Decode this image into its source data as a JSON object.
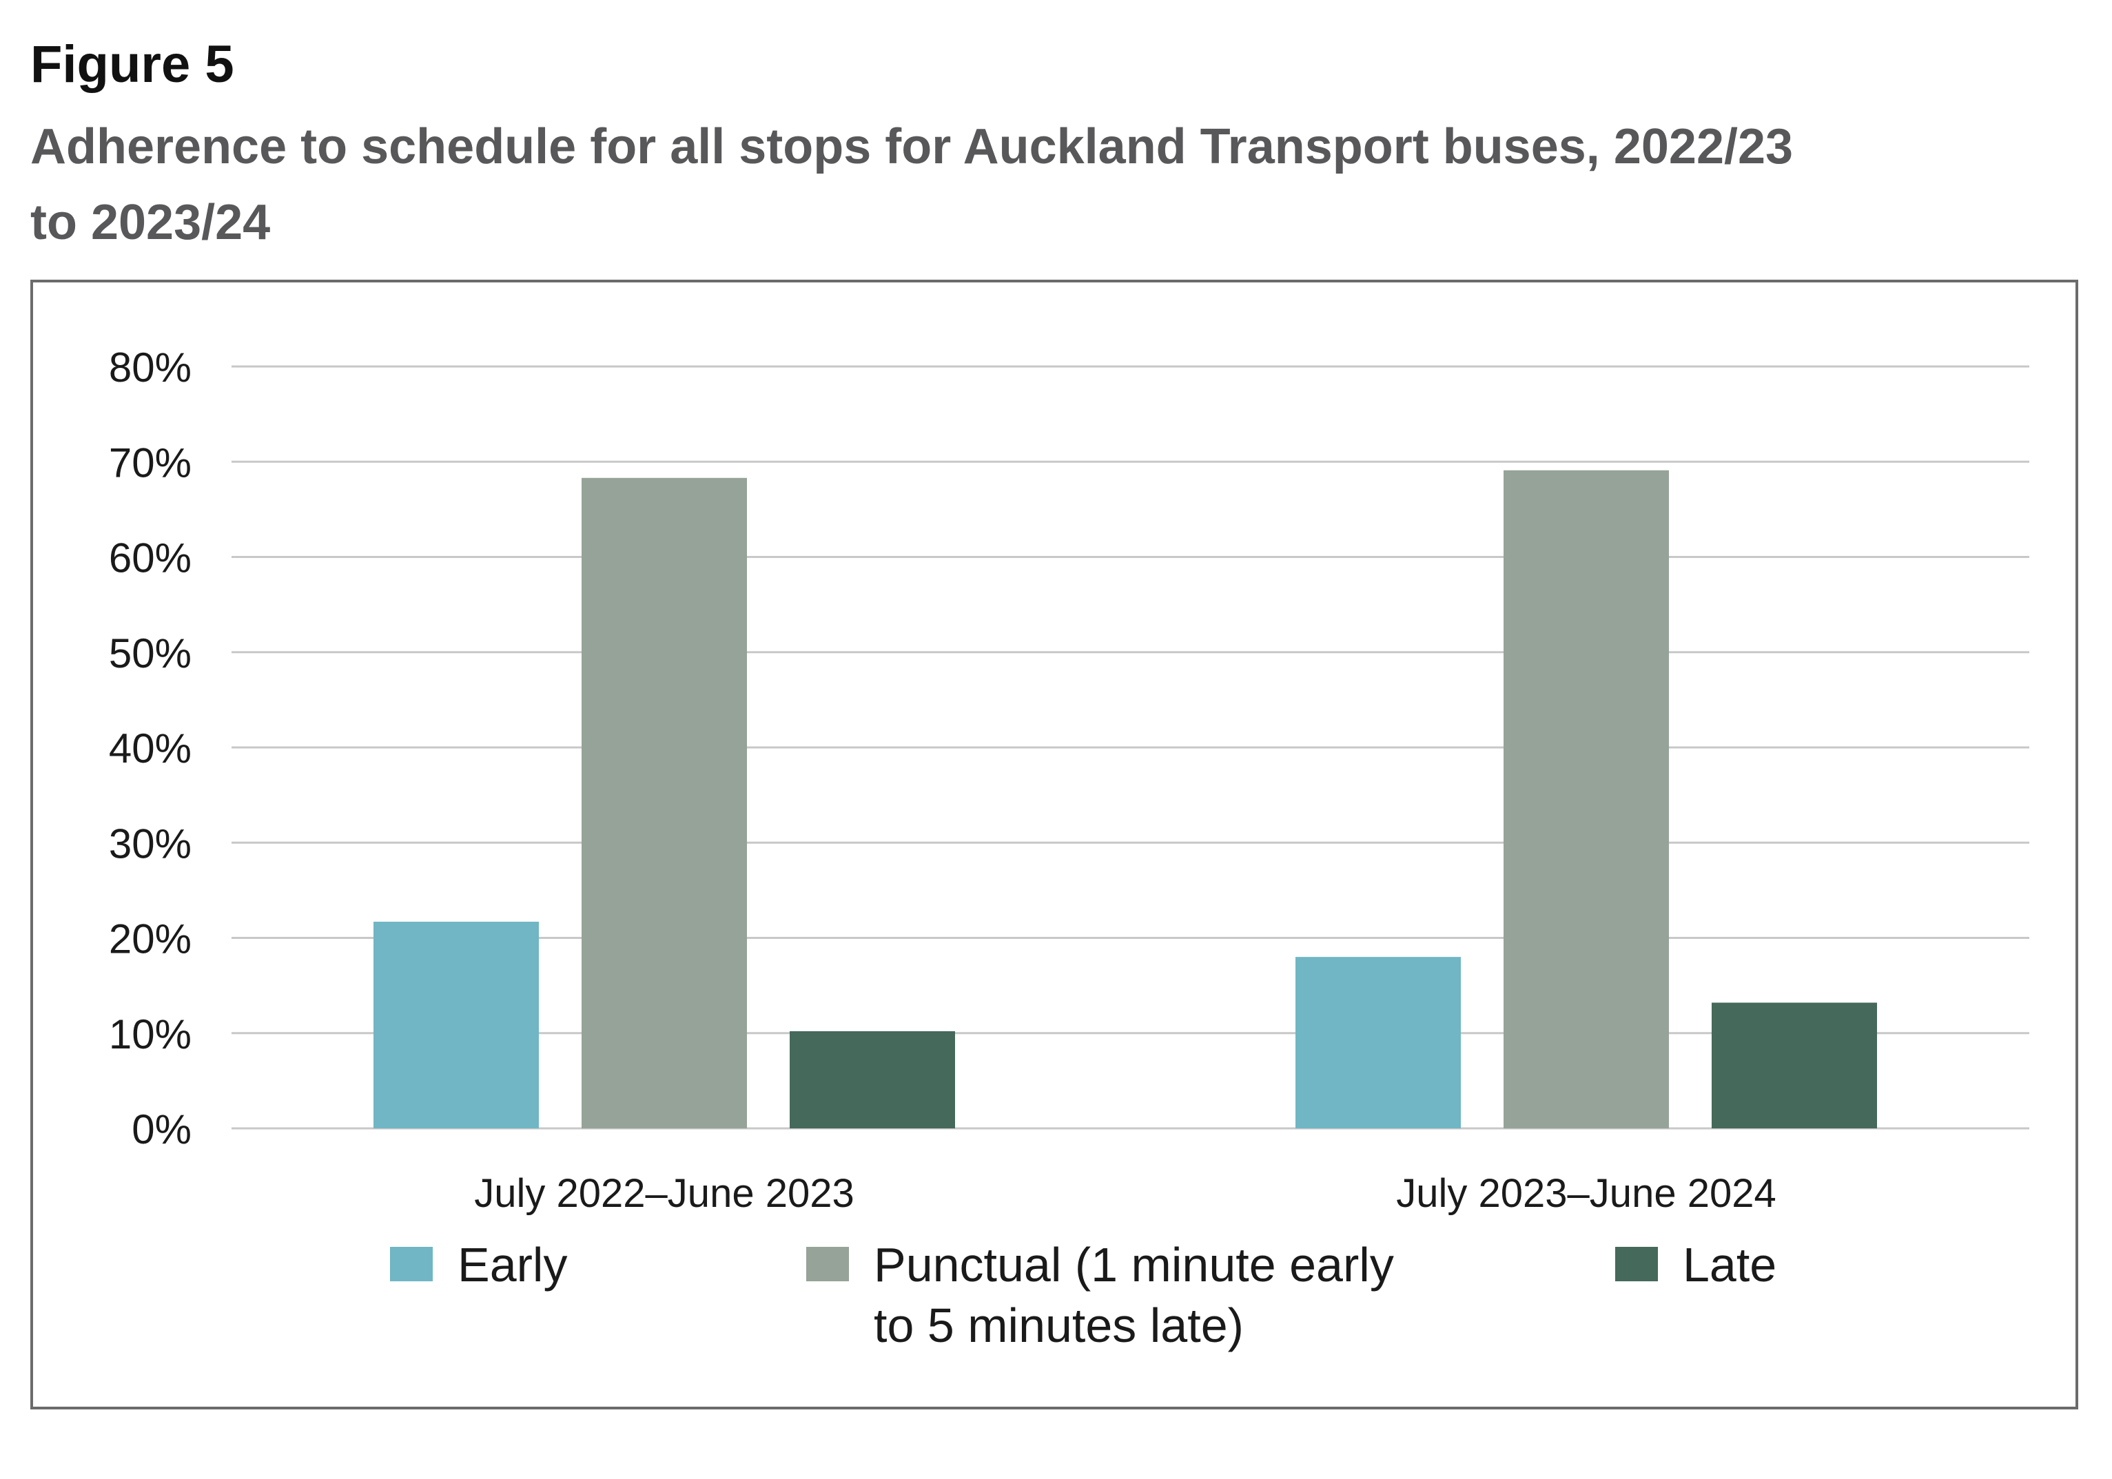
{
  "figure_label": "Figure 5",
  "title": "Adherence to schedule for all stops for Auckland Transport buses, 2022/23 to 2023/24",
  "chart_data": {
    "type": "bar",
    "title": "Adherence to schedule for all stops for Auckland Transport buses, 2022/23 to 2023/24",
    "categories": [
      "July 2022–June 2023",
      "July 2023–June 2024"
    ],
    "series": [
      {
        "name": "Early",
        "values": [
          21.7,
          18.0
        ],
        "color": "#70b6c4"
      },
      {
        "name": "Punctual (1 minute early to 5 minutes late)",
        "values": [
          68.3,
          69.1
        ],
        "color": "#96a398"
      },
      {
        "name": "Late",
        "values": [
          10.2,
          13.2
        ],
        "color": "#45695a"
      }
    ],
    "yticks": [
      "0%",
      "10%",
      "20%",
      "30%",
      "40%",
      "50%",
      "60%",
      "70%",
      "80%"
    ],
    "ylim": [
      0,
      80
    ],
    "yunit": "%",
    "xlabel": "",
    "ylabel": "",
    "grid": true,
    "legend": "bottom",
    "gridline_color": "#c8c8c8",
    "frame_color": "#6b6b6b"
  },
  "legend": {
    "items": [
      {
        "label_line1": "Early",
        "label_line2": ""
      },
      {
        "label_line1": "Punctual (1 minute early",
        "label_line2": "to 5 minutes late)"
      },
      {
        "label_line1": "Late",
        "label_line2": ""
      }
    ]
  }
}
